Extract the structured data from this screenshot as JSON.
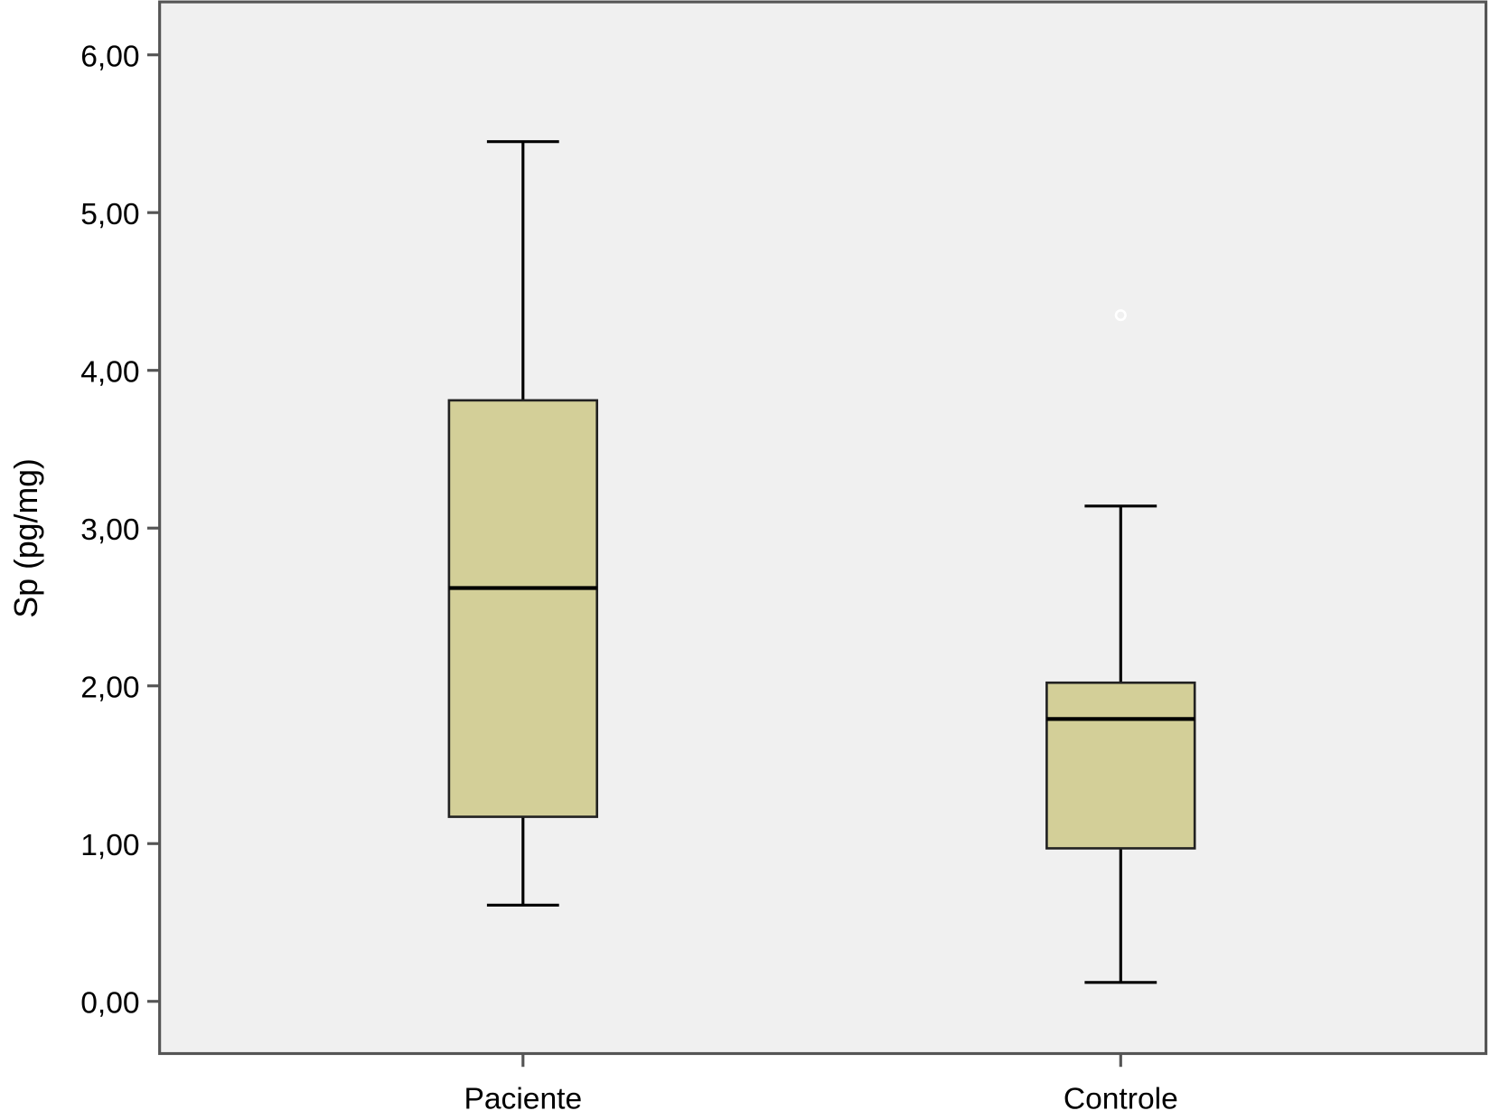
{
  "chart_data": {
    "type": "box",
    "title": "",
    "xlabel": "",
    "ylabel": "Sp (pg/mg)",
    "ylim": [
      -0.33,
      6.35
    ],
    "yticks": [
      0,
      1,
      2,
      3,
      4,
      5,
      6
    ],
    "ytick_labels": [
      "0,00",
      "1,00",
      "2,00",
      "3,00",
      "4,00",
      "5,00",
      "6,00"
    ],
    "categories": [
      "Paciente",
      "Controle"
    ],
    "boxes": [
      {
        "name": "Paciente",
        "min": 0.61,
        "q1": 1.17,
        "median": 2.62,
        "q3": 3.81,
        "max": 5.45,
        "outliers": []
      },
      {
        "name": "Controle",
        "min": 0.12,
        "q1": 0.97,
        "median": 1.79,
        "q3": 2.02,
        "max": 3.14,
        "outliers": [
          4.35
        ]
      }
    ],
    "grid": false,
    "colors": {
      "box_fill": "#d3cf98",
      "plot_bg": "#f0f0f0",
      "line": "#000000",
      "frame": "#555555"
    }
  }
}
